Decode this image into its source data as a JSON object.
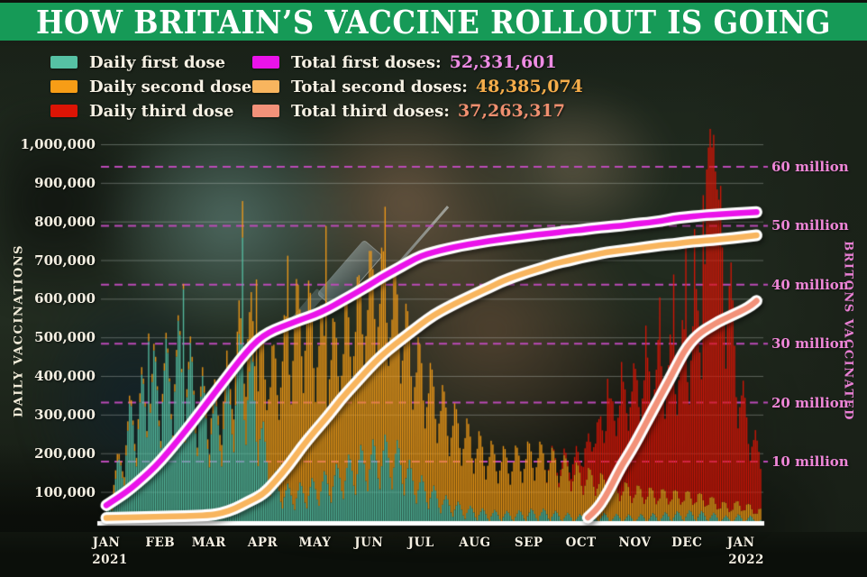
{
  "title": "HOW BRITAIN’S VACCINE ROLLOUT IS GOING",
  "header_color": "#169a57",
  "legend": {
    "daily": [
      {
        "label": "Daily first dose"
      },
      {
        "label": "Daily second dose"
      },
      {
        "label": "Daily third dose"
      }
    ],
    "totals": [
      {
        "label": "Total first doses:",
        "value": "52,331,601",
        "swatch": "#ea13ea",
        "value_color": "#ee8ce4"
      },
      {
        "label": "Total second doses:",
        "value": "48,385,074",
        "swatch": "#f8b55e",
        "value_color": "#f6ad4a"
      },
      {
        "label": "Total third doses:",
        "value": "37,263,317",
        "swatch": "#f29179",
        "value_color": "#ef8f6f"
      }
    ]
  },
  "chart_data": {
    "type": "bar+line",
    "title": "HOW BRITAIN’S VACCINE ROLLOUT IS GOING",
    "grid": true,
    "x_axis": {
      "month_labels": [
        "JAN",
        "FEB",
        "MAR",
        "APR",
        "MAY",
        "JUN",
        "JUL",
        "AUG",
        "SEP",
        "OCT",
        "NOV",
        "DEC",
        "JAN"
      ],
      "month_start_days": [
        0,
        31,
        59,
        90,
        120,
        151,
        181,
        212,
        243,
        273,
        304,
        334,
        365
      ],
      "year_under_first": "2021",
      "year_under_last": "2022",
      "total_days": 377
    },
    "left_axis": {
      "label": "DAILY VACCINATIONS",
      "tick_labels": [
        "100,000",
        "200,000",
        "300,000",
        "400,000",
        "500,000",
        "600,000",
        "700,000",
        "800,000",
        "900,000",
        "1,000,000"
      ],
      "tick_values_thousands": [
        100,
        200,
        300,
        400,
        500,
        600,
        700,
        800,
        900,
        1000
      ],
      "gridline_color": "rgba(222,232,226,0.33)"
    },
    "right_axis": {
      "label": "BRITONS VACCINATED",
      "tick_labels": [
        "10 million",
        "20 million",
        "30 million",
        "40 million",
        "50 million",
        "60 million"
      ],
      "tick_values_millions": [
        10,
        20,
        30,
        40,
        50,
        60
      ],
      "gridline_color": "#bc4ab8",
      "gridline_style": "dashed"
    },
    "bar_series": [
      {
        "name": "Daily first dose",
        "color": "#56c1a4",
        "weekly_daily_avg_thousands": [
          45,
          160,
          280,
          330,
          380,
          400,
          440,
          380,
          310,
          280,
          330,
          420,
          380,
          200,
          110,
          95,
          100,
          110,
          125,
          140,
          160,
          180,
          190,
          200,
          185,
          140,
          110,
          90,
          70,
          58,
          50,
          45,
          42,
          40,
          42,
          45,
          45,
          40,
          36,
          33,
          38,
          36,
          34,
          33,
          34,
          36,
          38,
          40,
          42,
          40,
          36,
          30,
          34,
          30,
          24,
          20
        ]
      },
      {
        "name": "Daily second dose",
        "color": "#f79d16",
        "weekly_daily_avg_thousands": [
          18,
          20,
          22,
          20,
          18,
          16,
          15,
          18,
          25,
          40,
          70,
          95,
          150,
          230,
          320,
          420,
          480,
          420,
          360,
          340,
          380,
          430,
          470,
          440,
          390,
          340,
          300,
          265,
          235,
          210,
          185,
          165,
          150,
          145,
          150,
          158,
          150,
          138,
          125,
          112,
          100,
          90,
          82,
          74,
          68,
          62,
          58,
          54,
          50,
          46,
          40,
          34,
          36,
          30,
          24,
          18
        ]
      },
      {
        "name": "Daily third dose",
        "color": "#dc1405",
        "weekly_daily_avg_thousands": [
          0,
          0,
          0,
          0,
          0,
          0,
          0,
          0,
          0,
          0,
          0,
          0,
          0,
          0,
          0,
          0,
          0,
          0,
          0,
          0,
          0,
          0,
          0,
          0,
          0,
          0,
          0,
          0,
          0,
          0,
          0,
          0,
          0,
          0,
          0,
          0,
          0,
          8,
          25,
          60,
          120,
          180,
          230,
          270,
          300,
          330,
          340,
          360,
          420,
          560,
          820,
          600,
          300,
          190,
          130,
          90
        ]
      }
    ],
    "weekday_pattern": [
      1.15,
      0.95,
      0.7,
      0.55,
      0.85,
      1.05,
      1.25
    ],
    "spike_days": [
      {
        "day": 24,
        "series": 0,
        "value": 490
      },
      {
        "day": 44,
        "series": 0,
        "value": 625
      },
      {
        "day": 78,
        "series": 0,
        "value": 758
      },
      {
        "day": 78,
        "series": 1,
        "value": 95
      },
      {
        "day": 86,
        "series": 1,
        "value": 420
      },
      {
        "day": 104,
        "series": 1,
        "value": 590
      },
      {
        "day": 126,
        "series": 1,
        "value": 645
      },
      {
        "day": 160,
        "series": 1,
        "value": 590
      },
      {
        "day": 288,
        "series": 2,
        "value": 310
      },
      {
        "day": 296,
        "series": 2,
        "value": 345
      },
      {
        "day": 310,
        "series": 2,
        "value": 450
      },
      {
        "day": 318,
        "series": 2,
        "value": 520
      },
      {
        "day": 326,
        "series": 2,
        "value": 560
      },
      {
        "day": 333,
        "series": 2,
        "value": 640
      },
      {
        "day": 338,
        "series": 2,
        "value": 710
      },
      {
        "day": 343,
        "series": 2,
        "value": 790
      },
      {
        "day": 345,
        "series": 2,
        "value": 870
      },
      {
        "day": 346,
        "series": 2,
        "value": 925
      },
      {
        "day": 347,
        "series": 2,
        "value": 975
      },
      {
        "day": 348,
        "series": 2,
        "value": 905
      },
      {
        "day": 349,
        "series": 2,
        "value": 940
      },
      {
        "day": 350,
        "series": 2,
        "value": 860
      },
      {
        "day": 352,
        "series": 2,
        "value": 800
      }
    ],
    "line_series": [
      {
        "name": "Total first doses",
        "final_total": "52,331,601",
        "color": "#ea13ea",
        "outline": "#ffffff",
        "points_day_millions": [
          [
            0,
            2.6
          ],
          [
            7,
            3.9
          ],
          [
            14,
            5.4
          ],
          [
            21,
            7.2
          ],
          [
            28,
            9.1
          ],
          [
            35,
            11.4
          ],
          [
            42,
            13.9
          ],
          [
            49,
            16.5
          ],
          [
            56,
            19.2
          ],
          [
            63,
            21.9
          ],
          [
            70,
            24.6
          ],
          [
            77,
            27.3
          ],
          [
            84,
            29.7
          ],
          [
            90,
            31.3
          ],
          [
            97,
            32.4
          ],
          [
            105,
            33.3
          ],
          [
            112,
            34.1
          ],
          [
            120,
            34.9
          ],
          [
            128,
            36.0
          ],
          [
            135,
            37.2
          ],
          [
            143,
            38.5
          ],
          [
            151,
            39.9
          ],
          [
            158,
            41.2
          ],
          [
            166,
            42.5
          ],
          [
            174,
            43.8
          ],
          [
            181,
            44.9
          ],
          [
            188,
            45.5
          ],
          [
            196,
            46.1
          ],
          [
            204,
            46.6
          ],
          [
            212,
            47.0
          ],
          [
            220,
            47.4
          ],
          [
            227,
            47.7
          ],
          [
            235,
            48.0
          ],
          [
            243,
            48.3
          ],
          [
            251,
            48.6
          ],
          [
            258,
            48.8
          ],
          [
            266,
            49.1
          ],
          [
            273,
            49.3
          ],
          [
            281,
            49.6
          ],
          [
            288,
            49.8
          ],
          [
            296,
            50.0
          ],
          [
            304,
            50.3
          ],
          [
            311,
            50.5
          ],
          [
            319,
            50.8
          ],
          [
            326,
            51.2
          ],
          [
            334,
            51.5
          ],
          [
            341,
            51.7
          ],
          [
            349,
            51.9
          ],
          [
            356,
            52.0
          ],
          [
            365,
            52.15
          ],
          [
            374,
            52.33
          ]
        ]
      },
      {
        "name": "Total second doses",
        "final_total": "48,385,074",
        "color": "#f8b55e",
        "outline": "#ffffff",
        "points_day_millions": [
          [
            0,
            0.45
          ],
          [
            14,
            0.55
          ],
          [
            31,
            0.65
          ],
          [
            45,
            0.75
          ],
          [
            59,
            0.9
          ],
          [
            66,
            1.2
          ],
          [
            74,
            2.0
          ],
          [
            81,
            3.1
          ],
          [
            90,
            4.4
          ],
          [
            97,
            6.6
          ],
          [
            105,
            9.4
          ],
          [
            112,
            12.3
          ],
          [
            120,
            15.2
          ],
          [
            128,
            17.9
          ],
          [
            135,
            20.6
          ],
          [
            143,
            23.2
          ],
          [
            151,
            25.8
          ],
          [
            158,
            27.9
          ],
          [
            166,
            29.9
          ],
          [
            174,
            31.7
          ],
          [
            181,
            33.3
          ],
          [
            188,
            34.8
          ],
          [
            196,
            36.1
          ],
          [
            204,
            37.3
          ],
          [
            212,
            38.4
          ],
          [
            220,
            39.5
          ],
          [
            227,
            40.5
          ],
          [
            235,
            41.4
          ],
          [
            243,
            42.2
          ],
          [
            251,
            42.9
          ],
          [
            258,
            43.6
          ],
          [
            266,
            44.1
          ],
          [
            273,
            44.6
          ],
          [
            281,
            45.1
          ],
          [
            288,
            45.5
          ],
          [
            296,
            45.8
          ],
          [
            304,
            46.1
          ],
          [
            311,
            46.4
          ],
          [
            319,
            46.7
          ],
          [
            326,
            46.9
          ],
          [
            334,
            47.2
          ],
          [
            341,
            47.4
          ],
          [
            349,
            47.6
          ],
          [
            356,
            47.8
          ],
          [
            365,
            48.05
          ],
          [
            374,
            48.39
          ]
        ]
      },
      {
        "name": "Total third doses",
        "final_total": "37,263,317",
        "color": "#f29179",
        "outline": "#ffffff",
        "points_day_millions": [
          [
            277,
            0.5
          ],
          [
            282,
            1.8
          ],
          [
            287,
            4.0
          ],
          [
            291,
            6.2
          ],
          [
            294,
            8.0
          ],
          [
            297,
            9.6
          ],
          [
            300,
            11.0
          ],
          [
            304,
            13.0
          ],
          [
            308,
            15.2
          ],
          [
            312,
            17.4
          ],
          [
            316,
            19.6
          ],
          [
            320,
            21.8
          ],
          [
            324,
            24.0
          ],
          [
            328,
            26.3
          ],
          [
            332,
            28.5
          ],
          [
            336,
            30.2
          ],
          [
            340,
            31.4
          ],
          [
            344,
            32.3
          ],
          [
            348,
            33.0
          ],
          [
            352,
            33.7
          ],
          [
            357,
            34.4
          ],
          [
            362,
            35.1
          ],
          [
            367,
            35.8
          ],
          [
            371,
            36.5
          ],
          [
            374,
            37.26
          ]
        ]
      }
    ]
  }
}
